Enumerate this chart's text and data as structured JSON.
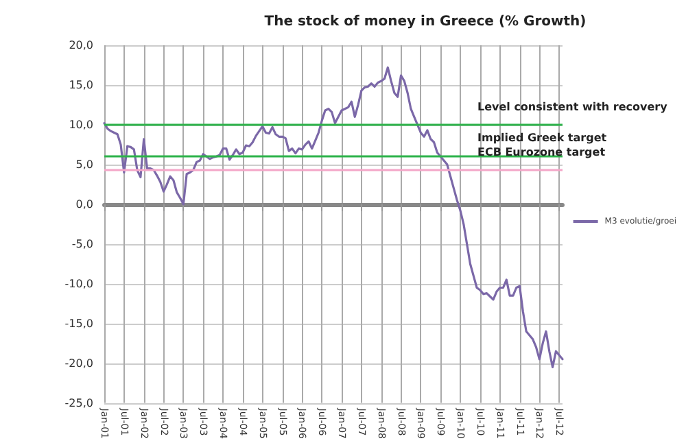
{
  "chart_data": {
    "type": "line",
    "title": "The stock of money in Greece (% Growth)",
    "categories": [
      "Jan-01",
      null,
      null,
      null,
      null,
      null,
      "Jul-01",
      null,
      null,
      null,
      null,
      null,
      "Jan-02",
      null,
      null,
      null,
      null,
      null,
      "Jul-02",
      null,
      null,
      null,
      null,
      null,
      "Jan-03",
      null,
      null,
      null,
      null,
      null,
      "Jul-03",
      null,
      null,
      null,
      null,
      null,
      "Jan-04",
      null,
      null,
      null,
      null,
      null,
      "Jul-04",
      null,
      null,
      null,
      null,
      null,
      "Jan-05",
      null,
      null,
      null,
      null,
      null,
      "Jul-05",
      null,
      null,
      null,
      null,
      null,
      "Jan-06",
      null,
      null,
      null,
      null,
      null,
      "Jul-06",
      null,
      null,
      null,
      null,
      null,
      "Jan-07",
      null,
      null,
      null,
      null,
      null,
      "Jul-07",
      null,
      null,
      null,
      null,
      null,
      "Jan-08",
      null,
      null,
      null,
      null,
      null,
      "Jul-08",
      null,
      null,
      null,
      null,
      null,
      "Jan-09",
      null,
      null,
      null,
      null,
      null,
      "Jul-09",
      null,
      null,
      null,
      null,
      null,
      "Jan-10",
      null,
      null,
      null,
      null,
      null,
      "Jul-10",
      null,
      null,
      null,
      null,
      null,
      "Jan-11",
      null,
      null,
      null,
      null,
      null,
      "Jul-11",
      null,
      null,
      null,
      null,
      null,
      "Jan-12",
      null,
      null,
      null,
      null,
      null,
      "Jul-12",
      null
    ],
    "series": [
      {
        "name": "M3 evolutie/groei",
        "color": "#7b68a8",
        "values": [
          10.2,
          9.5,
          9.2,
          9.0,
          8.8,
          7.5,
          4.0,
          7.3,
          7.2,
          6.9,
          4.3,
          3.4,
          8.2,
          4.5,
          4.5,
          4.3,
          3.6,
          2.8,
          1.6,
          2.5,
          3.5,
          3.0,
          1.5,
          0.8,
          0.0,
          3.8,
          4.0,
          4.3,
          5.3,
          5.5,
          6.3,
          6.0,
          5.7,
          5.9,
          6.0,
          6.2,
          7.0,
          7.0,
          5.6,
          6.2,
          6.9,
          6.3,
          6.5,
          7.4,
          7.3,
          7.8,
          8.6,
          9.2,
          9.8,
          9.0,
          8.9,
          9.7,
          8.8,
          8.5,
          8.5,
          8.3,
          6.7,
          7.0,
          6.4,
          7.0,
          6.9,
          7.5,
          7.9,
          7.0,
          8.0,
          9.0,
          10.5,
          11.8,
          12.0,
          11.6,
          10.2,
          11.0,
          11.8,
          12.0,
          12.2,
          12.9,
          11.0,
          12.5,
          14.3,
          14.7,
          14.8,
          15.2,
          14.8,
          15.3,
          15.5,
          15.8,
          17.2,
          15.5,
          14.0,
          13.5,
          16.2,
          15.5,
          14.0,
          12.0,
          11.0,
          10.0,
          9.0,
          8.5,
          9.3,
          8.2,
          7.8,
          6.5,
          6.0,
          5.5,
          5.0,
          3.5,
          2.0,
          0.5,
          -0.8,
          -2.5,
          -5.0,
          -7.5,
          -9.0,
          -10.5,
          -10.8,
          -11.3,
          -11.2,
          -11.6,
          -12.0,
          -11.0,
          -10.5,
          -10.5,
          -9.5,
          -11.5,
          -11.5,
          -10.5,
          -10.3,
          -13.5,
          -16.0,
          -16.5,
          -17.0,
          -18.0,
          -19.5,
          -17.5,
          -16.0,
          -18.5,
          -20.5,
          -18.5,
          -19.0,
          -19.5
        ]
      }
    ],
    "ylim": [
      -25,
      20
    ],
    "yticks": [
      {
        "value": -25,
        "label": "-25,0"
      },
      {
        "value": -20,
        "label": "-20,0"
      },
      {
        "value": -15,
        "label": "-15,0"
      },
      {
        "value": -10,
        "label": "-10,0"
      },
      {
        "value": -5,
        "label": "-5,0"
      },
      {
        "value": 0,
        "label": "0,0"
      },
      {
        "value": 5,
        "label": "5,0"
      },
      {
        "value": 10,
        "label": "10,0"
      },
      {
        "value": 15,
        "label": "15,0"
      },
      {
        "value": 20,
        "label": "20,0"
      }
    ],
    "ref_lines": [
      {
        "axis": "y",
        "value": 10,
        "label": "Level consistent with recovery",
        "color": "#2db34a"
      },
      {
        "axis": "y",
        "value": 6.1,
        "label": "Implied Greek target",
        "color": "#2db34a"
      },
      {
        "axis": "y",
        "value": 4.3,
        "label": "ECB Eurozone target",
        "color": "#f4a6c8"
      }
    ],
    "grid": true,
    "legend": "right",
    "marker": "none",
    "line_style": "solid"
  }
}
